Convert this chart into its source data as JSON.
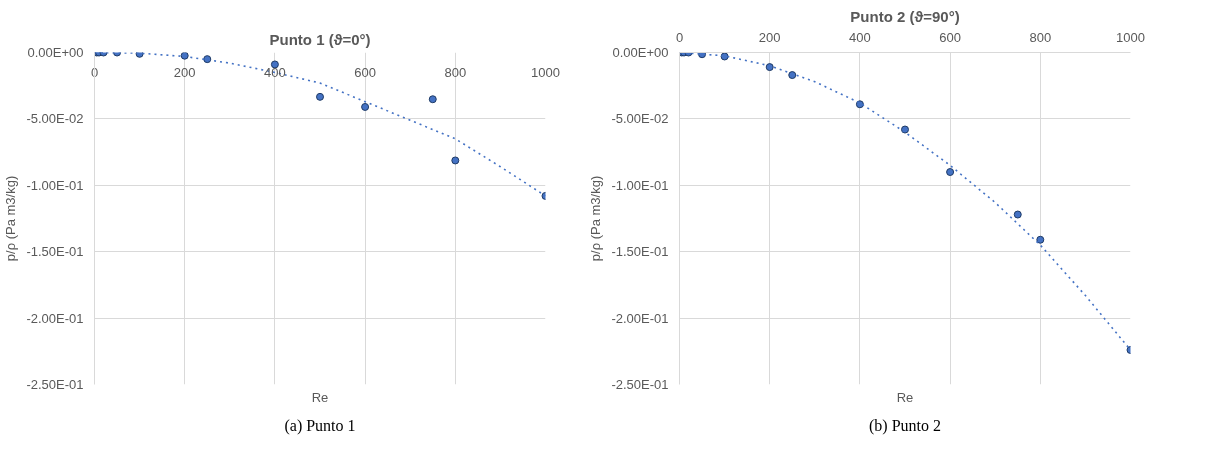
{
  "chart_data": [
    {
      "type": "scatter",
      "title": "Punto 1 (ϑ=0°)",
      "xlabel": "Re",
      "ylabel": "p/ρ (Pa m3/kg)",
      "annotations": [
        "(a) Punto 1"
      ],
      "xlim": [
        0,
        1000
      ],
      "xticks": [
        0,
        200,
        400,
        600,
        800,
        1000
      ],
      "ylim": [
        -0.25,
        0
      ],
      "yticks": [
        {
          "value": 0,
          "label": "0.00E+00"
        },
        {
          "value": -0.05,
          "label": "-5.00E-02"
        },
        {
          "value": -0.1,
          "label": "-1.00E-01"
        },
        {
          "value": -0.15,
          "label": "-1.50E-01"
        },
        {
          "value": -0.2,
          "label": "-2.00E-01"
        },
        {
          "value": -0.25,
          "label": "-2.50E-01"
        }
      ],
      "grid": true,
      "marker": "circle",
      "series": [
        {
          "color": "#4472c4",
          "x": [
            5,
            10,
            20,
            50,
            100,
            200,
            250,
            400,
            500,
            600,
            750,
            800,
            1000
          ],
          "values": [
            0,
            0,
            0,
            0,
            -0.001,
            -0.0024,
            -0.005,
            -0.009,
            -0.0334,
            -0.041,
            -0.0352,
            -0.0813,
            -0.108
          ]
        },
        {
          "type": "line",
          "line_style": "dotted",
          "marker": "none",
          "color": "#4472c4",
          "x": [
            0,
            100,
            200,
            300,
            400,
            500,
            600,
            700,
            800,
            900,
            1000
          ],
          "values": [
            0,
            -0.0005,
            -0.003,
            -0.008,
            -0.015,
            -0.023,
            -0.037,
            -0.051,
            -0.065,
            -0.086,
            -0.108
          ]
        }
      ]
    },
    {
      "type": "scatter",
      "title": "Punto 2 (ϑ=90°)",
      "xlabel": "Re",
      "ylabel": "p/ρ (Pa m3/kg)",
      "annotations": [
        "(b) Punto 2"
      ],
      "xlim": [
        0,
        1000
      ],
      "xticks": [
        0,
        200,
        400,
        600,
        800,
        1000
      ],
      "ylim": [
        -0.25,
        0
      ],
      "yticks": [
        {
          "value": 0,
          "label": "0.00E+00"
        },
        {
          "value": -0.05,
          "label": "-5.00E-02"
        },
        {
          "value": -0.1,
          "label": "-1.00E-01"
        },
        {
          "value": -0.15,
          "label": "-1.50E-01"
        },
        {
          "value": -0.2,
          "label": "-2.00E-01"
        },
        {
          "value": -0.25,
          "label": "-2.50E-01"
        }
      ],
      "grid": true,
      "marker": "circle",
      "series": [
        {
          "color": "#4472c4",
          "x": [
            5,
            10,
            20,
            50,
            100,
            200,
            250,
            400,
            500,
            600,
            750,
            800,
            1000
          ],
          "values": [
            0,
            0,
            0,
            -0.0013,
            -0.003,
            -0.011,
            -0.017,
            -0.039,
            -0.058,
            -0.09,
            -0.122,
            -0.141,
            -0.224
          ]
        },
        {
          "type": "line",
          "line_style": "dotted",
          "marker": "none",
          "color": "#4472c4",
          "x": [
            0,
            100,
            200,
            300,
            400,
            500,
            600,
            700,
            800,
            900,
            1000
          ],
          "values": [
            0,
            -0.0025,
            -0.01,
            -0.022,
            -0.038,
            -0.06,
            -0.085,
            -0.113,
            -0.145,
            -0.183,
            -0.224
          ]
        }
      ]
    }
  ]
}
